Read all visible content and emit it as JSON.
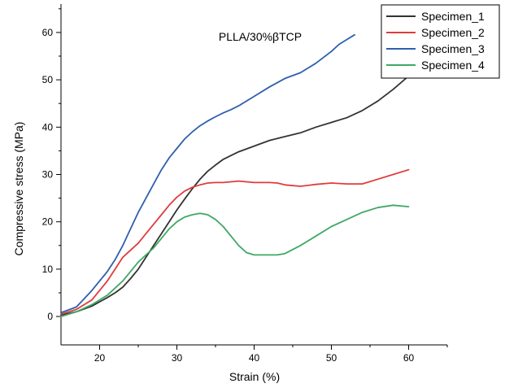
{
  "chart_data": {
    "type": "line",
    "title": "PLLA/30%βTCP",
    "xlabel": "Strain (%)",
    "ylabel": "Compressive stress (MPa)",
    "xlim": [
      15,
      65
    ],
    "ylim": [
      -6,
      66
    ],
    "xticks": [
      20,
      30,
      40,
      50,
      60
    ],
    "yticks": [
      0,
      10,
      20,
      30,
      40,
      50,
      60
    ],
    "legend_position": "top-right",
    "grid": false,
    "series": [
      {
        "name": "Specimen_1",
        "color": "#333333",
        "x": [
          15,
          17,
          19,
          21,
          22,
          23,
          24,
          25,
          26,
          27,
          28,
          29,
          30,
          31,
          32,
          33,
          34,
          35,
          36,
          37,
          38,
          40,
          42,
          44,
          46,
          48,
          50,
          52,
          54,
          56,
          58,
          60
        ],
        "y": [
          0.3,
          1.0,
          2.2,
          4.0,
          5.0,
          6.2,
          8.0,
          10.0,
          12.5,
          15.0,
          17.5,
          20.0,
          22.5,
          24.8,
          27.0,
          29.0,
          30.7,
          32.0,
          33.2,
          34.0,
          34.8,
          36.0,
          37.2,
          38.0,
          38.8,
          40.0,
          41.0,
          42.0,
          43.5,
          45.5,
          48.0,
          50.8
        ]
      },
      {
        "name": "Specimen_2",
        "color": "#e03c3c",
        "x": [
          15,
          17,
          19,
          20,
          21,
          22,
          23,
          24,
          25,
          26,
          27,
          28,
          29,
          30,
          31,
          32,
          33,
          34,
          35,
          36,
          38,
          40,
          42,
          43,
          44,
          46,
          48,
          50,
          52,
          54,
          56,
          58,
          60
        ],
        "y": [
          0.5,
          1.5,
          3.5,
          5.5,
          7.5,
          10.0,
          12.5,
          14.0,
          15.5,
          17.5,
          19.5,
          21.5,
          23.5,
          25.2,
          26.5,
          27.3,
          27.8,
          28.2,
          28.3,
          28.3,
          28.6,
          28.3,
          28.3,
          28.2,
          27.8,
          27.5,
          27.9,
          28.2,
          28.0,
          28.0,
          29.0,
          30.0,
          31.0
        ]
      },
      {
        "name": "Specimen_3",
        "color": "#2f5fad",
        "x": [
          15,
          17,
          19,
          21,
          22,
          23,
          24,
          25,
          26,
          27,
          28,
          29,
          30,
          31,
          32,
          33,
          34,
          35,
          36,
          37,
          38,
          40,
          42,
          44,
          46,
          48,
          50,
          51,
          52,
          53
        ],
        "y": [
          0.8,
          2.0,
          5.5,
          9.5,
          12.0,
          15.0,
          18.5,
          22.0,
          25.0,
          28.0,
          31.0,
          33.5,
          35.5,
          37.5,
          39.0,
          40.3,
          41.3,
          42.2,
          43.0,
          43.7,
          44.5,
          46.5,
          48.5,
          50.3,
          51.5,
          53.5,
          56.0,
          57.5,
          58.5,
          59.5
        ]
      },
      {
        "name": "Specimen_4",
        "color": "#3fa866",
        "x": [
          15,
          17,
          19,
          21,
          22,
          23,
          24,
          25,
          26,
          27,
          28,
          29,
          30,
          31,
          32,
          33,
          34,
          35,
          36,
          37,
          38,
          39,
          40,
          41,
          42,
          43,
          44,
          46,
          48,
          50,
          52,
          54,
          56,
          58,
          60
        ],
        "y": [
          0.0,
          1.0,
          2.5,
          4.5,
          6.0,
          7.5,
          9.5,
          11.5,
          13.0,
          14.5,
          16.5,
          18.5,
          20.0,
          21.0,
          21.5,
          21.8,
          21.5,
          20.5,
          19.0,
          17.0,
          15.0,
          13.5,
          13.0,
          13.0,
          13.0,
          13.0,
          13.3,
          15.0,
          17.0,
          19.0,
          20.5,
          22.0,
          23.0,
          23.5,
          23.2
        ]
      }
    ]
  }
}
